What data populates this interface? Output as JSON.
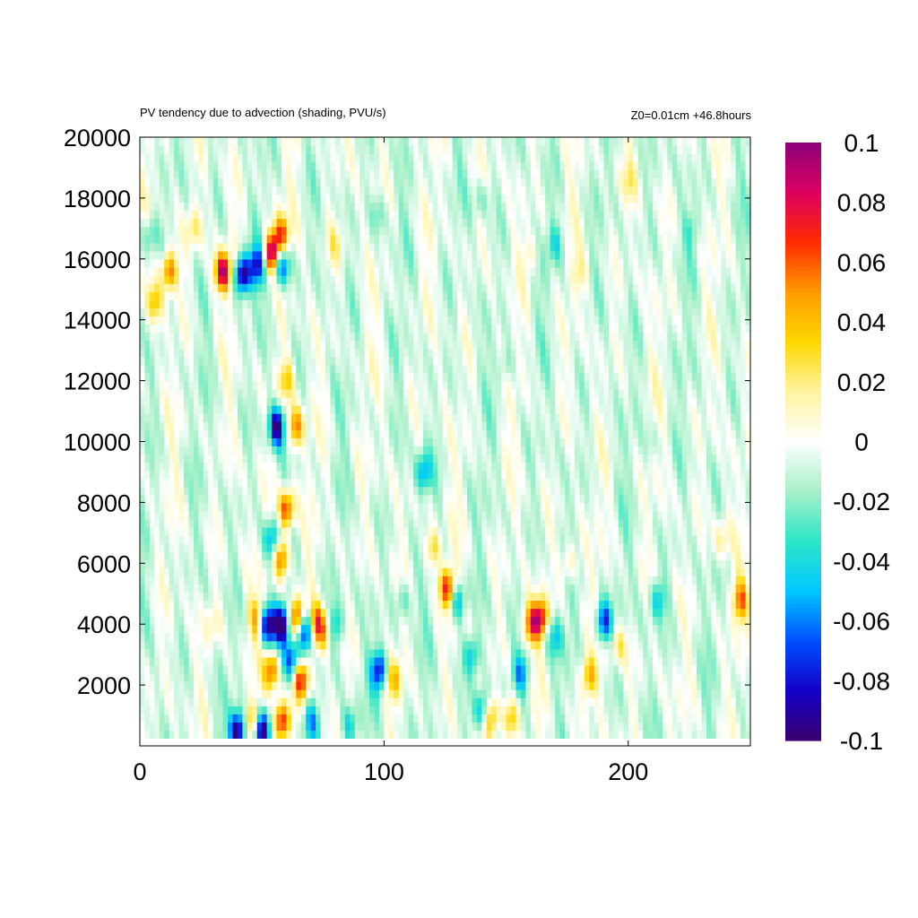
{
  "chart_data": {
    "type": "heatmap",
    "title": "PV tendency due to advection (shading, PVU/s)",
    "subtitle": "Z0=0.01cm   +46.8hours",
    "xlabel": "",
    "ylabel": "",
    "xlim": [
      0,
      250
    ],
    "ylim": [
      0,
      20000
    ],
    "x_ticks": [
      0,
      100,
      200
    ],
    "y_ticks": [
      2000,
      4000,
      6000,
      8000,
      10000,
      12000,
      14000,
      16000,
      18000,
      20000
    ],
    "colorbar": {
      "range": [
        -0.1,
        0.1
      ],
      "ticks": [
        "0.1",
        "0.08",
        "0.06",
        "0.04",
        "0.02",
        "0",
        "-0.02",
        "-0.04",
        "-0.06",
        "-0.08",
        "-0.1"
      ],
      "colors": [
        "#3a006f",
        "#1400c8",
        "#0050ff",
        "#00c8ff",
        "#2ee6c8",
        "#a8f0c8",
        "#ffffff",
        "#fff4a0",
        "#ffd700",
        "#ff9a00",
        "#ff2a00",
        "#dc0060",
        "#8c007a"
      ]
    },
    "features": [
      {
        "x": 12,
        "y": 15600,
        "value": 0.07
      },
      {
        "x": 34,
        "y": 15600,
        "value": 0.1
      },
      {
        "x": 42,
        "y": 15500,
        "value": -0.1
      },
      {
        "x": 48,
        "y": 15800,
        "value": -0.07
      },
      {
        "x": 54,
        "y": 16200,
        "value": 0.1
      },
      {
        "x": 58,
        "y": 16800,
        "value": 0.07
      },
      {
        "x": 58,
        "y": 15800,
        "value": -0.07
      },
      {
        "x": 56,
        "y": 10500,
        "value": -0.09
      },
      {
        "x": 60,
        "y": 12000,
        "value": 0.04
      },
      {
        "x": 64,
        "y": 10500,
        "value": 0.06
      },
      {
        "x": 60,
        "y": 7800,
        "value": 0.08
      },
      {
        "x": 54,
        "y": 6800,
        "value": -0.05
      },
      {
        "x": 58,
        "y": 6200,
        "value": 0.07
      },
      {
        "x": 52,
        "y": 4000,
        "value": -0.09
      },
      {
        "x": 58,
        "y": 4000,
        "value": -0.1
      },
      {
        "x": 48,
        "y": 4200,
        "value": 0.05
      },
      {
        "x": 64,
        "y": 4200,
        "value": 0.08
      },
      {
        "x": 68,
        "y": 3800,
        "value": -0.09
      },
      {
        "x": 72,
        "y": 4000,
        "value": 0.07
      },
      {
        "x": 76,
        "y": 3800,
        "value": 0.04
      },
      {
        "x": 80,
        "y": 4000,
        "value": -0.04
      },
      {
        "x": 66,
        "y": 2200,
        "value": 0.08
      },
      {
        "x": 62,
        "y": 2800,
        "value": -0.07
      },
      {
        "x": 54,
        "y": 2500,
        "value": 0.07
      },
      {
        "x": 40,
        "y": 500,
        "value": -0.1
      },
      {
        "x": 50,
        "y": 500,
        "value": -0.1
      },
      {
        "x": 58,
        "y": 800,
        "value": 0.09
      },
      {
        "x": 46,
        "y": 800,
        "value": 0.05
      },
      {
        "x": 70,
        "y": 800,
        "value": -0.05
      },
      {
        "x": 86,
        "y": 700,
        "value": -0.04
      },
      {
        "x": 98,
        "y": 2500,
        "value": -0.08
      },
      {
        "x": 104,
        "y": 2200,
        "value": 0.04
      },
      {
        "x": 108,
        "y": 4800,
        "value": -0.03
      },
      {
        "x": 116,
        "y": 9000,
        "value": -0.05
      },
      {
        "x": 120,
        "y": 6500,
        "value": 0.04
      },
      {
        "x": 126,
        "y": 5200,
        "value": 0.08
      },
      {
        "x": 130,
        "y": 4800,
        "value": -0.05
      },
      {
        "x": 136,
        "y": 3000,
        "value": -0.04
      },
      {
        "x": 140,
        "y": 1200,
        "value": -0.05
      },
      {
        "x": 144,
        "y": 1000,
        "value": 0.05
      },
      {
        "x": 152,
        "y": 900,
        "value": 0.05
      },
      {
        "x": 156,
        "y": 2400,
        "value": -0.05
      },
      {
        "x": 164,
        "y": 4200,
        "value": 0.08
      },
      {
        "x": 160,
        "y": 4000,
        "value": 0.06
      },
      {
        "x": 170,
        "y": 3600,
        "value": -0.04
      },
      {
        "x": 176,
        "y": 6000,
        "value": 0.03
      },
      {
        "x": 184,
        "y": 2300,
        "value": 0.05
      },
      {
        "x": 190,
        "y": 4100,
        "value": -0.07
      },
      {
        "x": 196,
        "y": 3300,
        "value": 0.03
      },
      {
        "x": 212,
        "y": 4800,
        "value": -0.04
      },
      {
        "x": 246,
        "y": 4800,
        "value": 0.06
      },
      {
        "x": 238,
        "y": 6800,
        "value": 0.03
      },
      {
        "x": 22,
        "y": 17000,
        "value": 0.03
      },
      {
        "x": 6,
        "y": 14600,
        "value": 0.04
      },
      {
        "x": 4,
        "y": 16800,
        "value": -0.03
      },
      {
        "x": 80,
        "y": 16500,
        "value": 0.02
      },
      {
        "x": 160,
        "y": 16200,
        "value": 0.02
      },
      {
        "x": 170,
        "y": 16500,
        "value": -0.03
      },
      {
        "x": 180,
        "y": 15500,
        "value": 0.02
      },
      {
        "x": 98,
        "y": 17500,
        "value": -0.02
      },
      {
        "x": 140,
        "y": 18000,
        "value": -0.02
      },
      {
        "x": 200,
        "y": 18500,
        "value": 0.02
      },
      {
        "x": 226,
        "y": 17000,
        "value": -0.02
      },
      {
        "x": 30,
        "y": 4000,
        "value": 0.02
      },
      {
        "x": 150,
        "y": 12500,
        "value": -0.02
      },
      {
        "x": 210,
        "y": 10000,
        "value": -0.01
      }
    ]
  }
}
